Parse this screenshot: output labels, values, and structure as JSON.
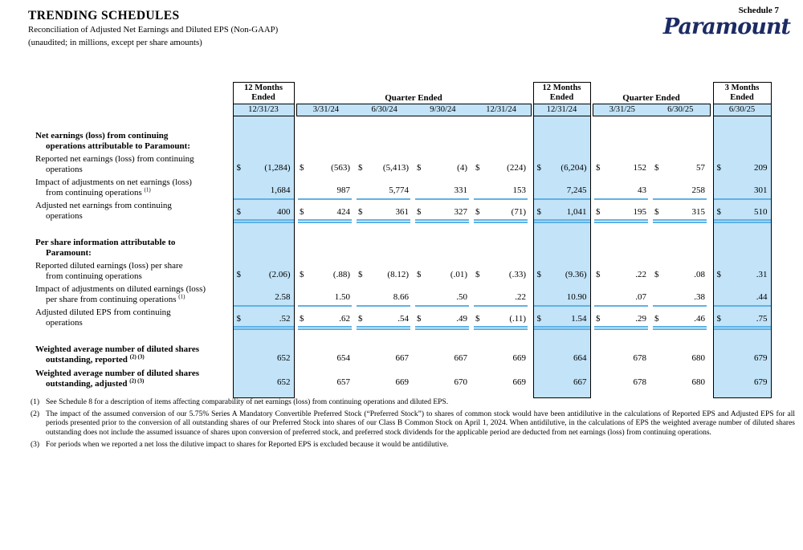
{
  "header": {
    "title": "TRENDING SCHEDULES",
    "subtitle1": "Reconciliation of Adjusted Net Earnings and Diluted EPS (Non-GAAP)",
    "subtitle2": "(unaudited; in millions, except per share amounts)",
    "schedule_label": "Schedule 7",
    "brand": "Paramount"
  },
  "colors": {
    "highlight_fill": "#c2e3f8",
    "rule_blue": "#5fb2e6",
    "brand_navy": "#1c2b63"
  },
  "table": {
    "currency": "$",
    "column_groups": [
      {
        "label": "12 Months Ended",
        "dates": [
          "12/31/23"
        ],
        "highlight": true
      },
      {
        "label": "Quarter Ended",
        "dates": [
          "3/31/24",
          "6/30/24",
          "9/30/24",
          "12/31/24"
        ],
        "highlight": false
      },
      {
        "label": "12 Months Ended",
        "dates": [
          "12/31/24"
        ],
        "highlight": true
      },
      {
        "label": "Quarter Ended",
        "dates": [
          "3/31/25",
          "6/30/25"
        ],
        "highlight": false
      },
      {
        "label": "3 Months Ended",
        "dates": [
          "6/30/25"
        ],
        "highlight": true
      }
    ],
    "rows": [
      {
        "type": "gap"
      },
      {
        "type": "section",
        "l1": "Net earnings (loss) from continuing",
        "l2": "operations attributable to Paramount:"
      },
      {
        "type": "data",
        "l1": "Reported net earnings (loss) from continuing",
        "l2": "operations",
        "dollar": true,
        "values": [
          "(1,284)",
          "(563)",
          "(5,413)",
          "(4)",
          "(224)",
          "(6,204)",
          "152",
          "57",
          "209"
        ]
      },
      {
        "type": "data",
        "l1": "Impact of adjustments on net earnings (loss)",
        "l2": "from continuing operations",
        "sup": "(1)",
        "rule": "single",
        "values": [
          "1,684",
          "987",
          "5,774",
          "331",
          "153",
          "7,245",
          "43",
          "258",
          "301"
        ]
      },
      {
        "type": "data",
        "l1": "Adjusted net earnings from continuing",
        "l2": "operations",
        "dollar": true,
        "rule": "double",
        "values": [
          "400",
          "424",
          "361",
          "327",
          "(71)",
          "1,041",
          "195",
          "315",
          "510"
        ]
      },
      {
        "type": "gap"
      },
      {
        "type": "section",
        "l1": "Per share information attributable to",
        "l2": "Paramount:"
      },
      {
        "type": "data",
        "l1": "Reported diluted earnings (loss) per share",
        "l2": "from continuing operations",
        "dollar": true,
        "values": [
          "(2.06)",
          "(.88)",
          "(8.12)",
          "(.01)",
          "(.33)",
          "(9.36)",
          ".22",
          ".08",
          ".31"
        ]
      },
      {
        "type": "data",
        "l1": "Impact of adjustments on diluted earnings (loss)",
        "l2": "per share from continuing operations",
        "sup": "(1)",
        "rule": "single",
        "values": [
          "2.58",
          "1.50",
          "8.66",
          ".50",
          ".22",
          "10.90",
          ".07",
          ".38",
          ".44"
        ]
      },
      {
        "type": "data",
        "l1": "Adjusted diluted EPS from continuing",
        "l2": "operations",
        "dollar": true,
        "rule": "double",
        "values": [
          ".52",
          ".62",
          ".54",
          ".49",
          "(.11)",
          "1.54",
          ".29",
          ".46",
          ".75"
        ]
      },
      {
        "type": "gap"
      },
      {
        "type": "shares",
        "l1": "Weighted average number of diluted shares",
        "l2": "outstanding, reported",
        "sup": "(2) (3)",
        "values": [
          "652",
          "654",
          "667",
          "667",
          "669",
          "664",
          "678",
          "680",
          "679"
        ]
      },
      {
        "type": "shares",
        "l1": "Weighted average number of diluted shares",
        "l2": "outstanding, adjusted",
        "sup": "(2) (3)",
        "values": [
          "652",
          "657",
          "669",
          "670",
          "669",
          "667",
          "678",
          "680",
          "679"
        ]
      },
      {
        "type": "bottom"
      }
    ]
  },
  "footnotes": [
    {
      "id": "(1)",
      "text": "See Schedule 8 for a description of items affecting comparability of net earnings (loss) from continuing operations and diluted EPS."
    },
    {
      "id": "(2)",
      "text": "The impact of the assumed conversion of our 5.75% Series A Mandatory Convertible Preferred Stock (“Preferred Stock”) to shares of common stock would have been antidilutive in the calculations of Reported EPS and Adjusted EPS for all periods presented prior to the conversion of all outstanding shares of our Preferred Stock into shares of our Class B Common Stock on April 1, 2024. When antidilutive, in the calculations of EPS the weighted average number of diluted shares outstanding does not include the assumed issuance of shares upon conversion of preferred stock, and preferred stock dividends for the applicable period are deducted from net earnings (loss) from continuing operations."
    },
    {
      "id": "(3)",
      "text": "For periods when we reported a net loss the dilutive impact to shares for Reported EPS is excluded because it would be antidilutive."
    }
  ]
}
